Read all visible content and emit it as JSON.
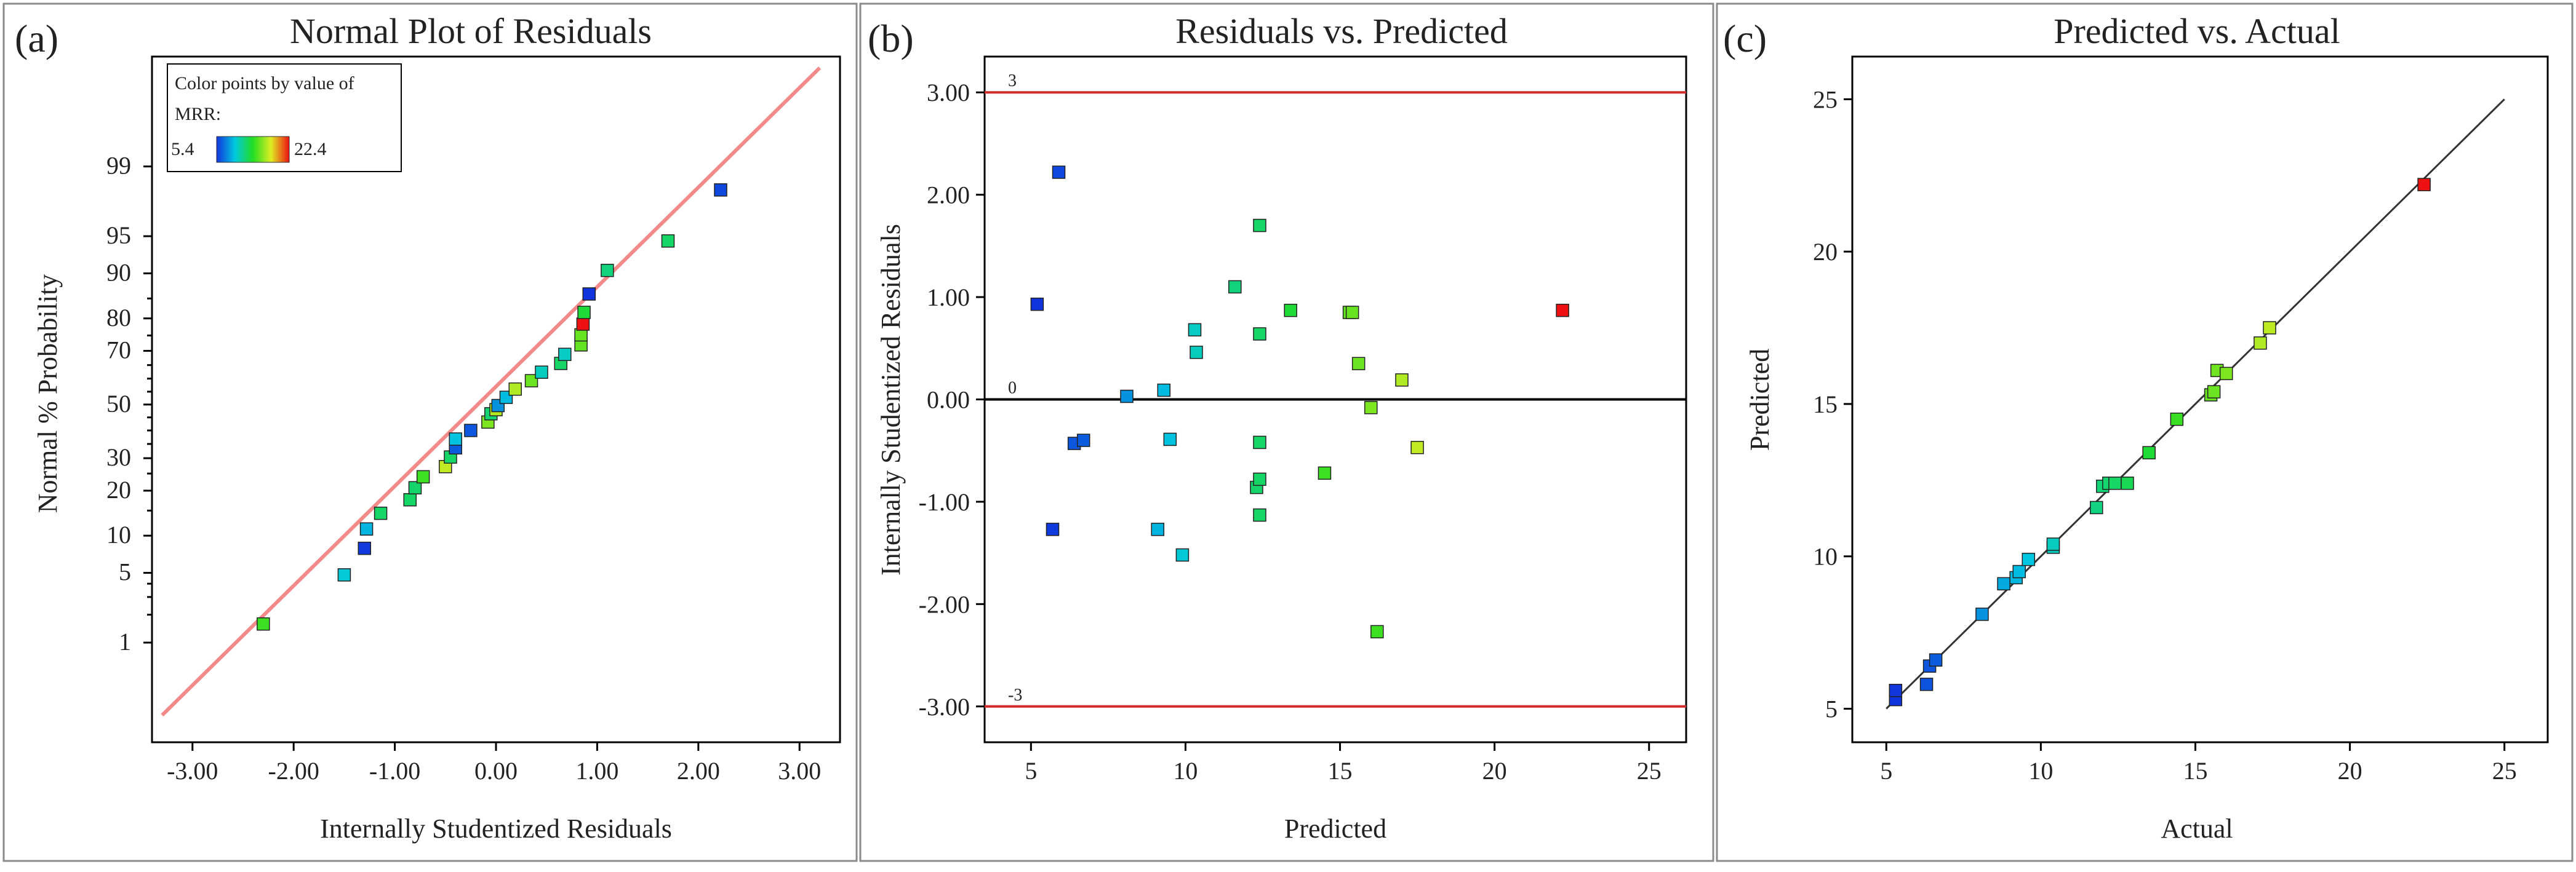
{
  "panels": [
    {
      "label": "(a)",
      "title": "Normal Plot of Residuals",
      "xlabel": "Internally Studentized Residuals",
      "ylabel": "Normal % Probability",
      "xticks": [
        "-3.00",
        "-2.00",
        "-1.00",
        "0.00",
        "1.00",
        "2.00",
        "3.00"
      ],
      "yticks": [
        "1",
        "5",
        "10",
        "20",
        "30",
        "50",
        "70",
        "80",
        "90",
        "95",
        "99"
      ]
    },
    {
      "label": "(b)",
      "title": "Residuals vs. Predicted",
      "xlabel": "Predicted",
      "ylabel": "Internally Studentized Residuals",
      "xticks": [
        "5",
        "10",
        "15",
        "20",
        "25"
      ],
      "yticks": [
        "-3.00",
        "-2.00",
        "-1.00",
        "0.00",
        "1.00",
        "2.00",
        "3.00"
      ],
      "ref_labels": [
        "3",
        "0",
        "-3"
      ]
    },
    {
      "label": "(c)",
      "title": "Predicted vs. Actual",
      "xlabel": "Actual",
      "ylabel": "Predicted",
      "xticks": [
        "5",
        "10",
        "15",
        "20",
        "25"
      ],
      "yticks": [
        "5",
        "10",
        "15",
        "20",
        "25"
      ]
    }
  ],
  "legend": {
    "title_line1": "Color points by value of",
    "title_line2": "MRR:",
    "min_label": "5.4",
    "max_label": "22.4"
  },
  "colors": {
    "fit_line_a": "#f28a8a",
    "limit_line_b": "#d22b2b",
    "zero_line_b": "#000000",
    "fit_line_c": "#333333",
    "gradient": [
      "#1133dd",
      "#00c8e0",
      "#22dd22",
      "#ddee22",
      "#ee1111"
    ]
  },
  "chart_data": [
    {
      "type": "scatter",
      "title": "Normal Plot of Residuals",
      "xlabel": "Internally Studentized Residuals",
      "ylabel": "Normal % Probability",
      "xlim": [
        -3.4,
        3.4
      ],
      "probability_ticks": [
        1,
        5,
        10,
        20,
        30,
        50,
        70,
        80,
        90,
        95,
        99
      ],
      "fit_line": [
        [
          -3.3,
          0.12
        ],
        [
          3.2,
          99.95
        ]
      ],
      "points": [
        {
          "x": -2.3,
          "p": 1.6,
          "mrr": 14.5
        },
        {
          "x": -1.5,
          "p": 4.8,
          "mrr": 9.9
        },
        {
          "x": -1.3,
          "p": 8.0,
          "mrr": 5.6
        },
        {
          "x": -1.28,
          "p": 11.2,
          "mrr": 9.1
        },
        {
          "x": -1.14,
          "p": 14.4,
          "mrr": 12.4
        },
        {
          "x": -0.85,
          "p": 17.6,
          "mrr": 12.4
        },
        {
          "x": -0.8,
          "p": 20.8,
          "mrr": 12.3
        },
        {
          "x": -0.72,
          "p": 24.0,
          "mrr": 14.5
        },
        {
          "x": -0.5,
          "p": 27.2,
          "mrr": 17.5
        },
        {
          "x": -0.45,
          "p": 30.4,
          "mrr": 12.4
        },
        {
          "x": -0.4,
          "p": 33.6,
          "mrr": 6.6
        },
        {
          "x": -0.4,
          "p": 36.8,
          "mrr": 9.5
        },
        {
          "x": -0.25,
          "p": 40.0,
          "mrr": 6.4
        },
        {
          "x": -0.08,
          "p": 43.2,
          "mrr": 16.0
        },
        {
          "x": -0.05,
          "p": 46.4,
          "mrr": 12.1
        },
        {
          "x": 0.0,
          "p": 48.0,
          "mrr": 17.2
        },
        {
          "x": 0.02,
          "p": 49.6,
          "mrr": 8.1
        },
        {
          "x": 0.1,
          "p": 52.8,
          "mrr": 9.3
        },
        {
          "x": 0.19,
          "p": 56.0,
          "mrr": 17.1
        },
        {
          "x": 0.35,
          "p": 59.2,
          "mrr": 15.6
        },
        {
          "x": 0.45,
          "p": 62.4,
          "mrr": 10.4
        },
        {
          "x": 0.64,
          "p": 65.6,
          "mrr": 12.4
        },
        {
          "x": 0.68,
          "p": 68.8,
          "mrr": 10.3
        },
        {
          "x": 0.84,
          "p": 72.0,
          "mrr": 15.4
        },
        {
          "x": 0.84,
          "p": 75.2,
          "mrr": 15.5
        },
        {
          "x": 0.86,
          "p": 78.4,
          "mrr": 22.4
        },
        {
          "x": 0.87,
          "p": 81.6,
          "mrr": 13.4
        },
        {
          "x": 0.92,
          "p": 86.0,
          "mrr": 5.4
        },
        {
          "x": 1.1,
          "p": 90.5,
          "mrr": 11.9
        },
        {
          "x": 1.7,
          "p": 94.5,
          "mrr": 12.4
        },
        {
          "x": 2.22,
          "p": 98.2,
          "mrr": 6.0
        }
      ]
    },
    {
      "type": "scatter",
      "title": "Residuals vs. Predicted",
      "xlabel": "Predicted",
      "ylabel": "Internally Studentized Residuals",
      "xlim": [
        3.5,
        26.2
      ],
      "ylim": [
        -3.35,
        3.35
      ],
      "reference_lines": [
        3,
        0,
        -3
      ],
      "points": [
        {
          "x": 5.2,
          "y": 0.93,
          "mrr": 5.4
        },
        {
          "x": 5.7,
          "y": -1.27,
          "mrr": 5.6
        },
        {
          "x": 5.9,
          "y": 2.22,
          "mrr": 6.0
        },
        {
          "x": 6.4,
          "y": -0.43,
          "mrr": 6.4
        },
        {
          "x": 6.7,
          "y": -0.4,
          "mrr": 6.6
        },
        {
          "x": 8.1,
          "y": 0.03,
          "mrr": 8.1
        },
        {
          "x": 9.1,
          "y": -1.27,
          "mrr": 9.1
        },
        {
          "x": 9.3,
          "y": 0.09,
          "mrr": 9.3
        },
        {
          "x": 9.5,
          "y": -0.39,
          "mrr": 9.5
        },
        {
          "x": 9.9,
          "y": -1.52,
          "mrr": 9.9
        },
        {
          "x": 10.3,
          "y": 0.68,
          "mrr": 10.3
        },
        {
          "x": 10.35,
          "y": 0.46,
          "mrr": 10.4
        },
        {
          "x": 11.6,
          "y": 1.1,
          "mrr": 11.9
        },
        {
          "x": 12.3,
          "y": -0.86,
          "mrr": 12.3
        },
        {
          "x": 12.4,
          "y": 1.7,
          "mrr": 12.4
        },
        {
          "x": 12.4,
          "y": 0.64,
          "mrr": 12.4
        },
        {
          "x": 12.4,
          "y": -0.42,
          "mrr": 12.4
        },
        {
          "x": 12.4,
          "y": -0.78,
          "mrr": 12.4
        },
        {
          "x": 12.4,
          "y": -1.13,
          "mrr": 12.4
        },
        {
          "x": 13.4,
          "y": 0.87,
          "mrr": 13.4
        },
        {
          "x": 14.5,
          "y": -0.72,
          "mrr": 14.5
        },
        {
          "x": 15.3,
          "y": 0.85,
          "mrr": 15.4
        },
        {
          "x": 15.4,
          "y": 0.85,
          "mrr": 15.5
        },
        {
          "x": 15.6,
          "y": 0.35,
          "mrr": 15.6
        },
        {
          "x": 16.0,
          "y": -0.08,
          "mrr": 16.0
        },
        {
          "x": 16.2,
          "y": -2.27,
          "mrr": 14.5
        },
        {
          "x": 17.0,
          "y": 0.19,
          "mrr": 17.1
        },
        {
          "x": 17.5,
          "y": -0.47,
          "mrr": 17.5
        },
        {
          "x": 22.2,
          "y": 0.87,
          "mrr": 22.4
        }
      ]
    },
    {
      "type": "scatter",
      "title": "Predicted vs. Actual",
      "xlabel": "Actual",
      "ylabel": "Predicted",
      "xlim": [
        3.9,
        26.4
      ],
      "ylim": [
        3.9,
        26.4
      ],
      "fit_line": [
        [
          5.0,
          5.0
        ],
        [
          25.0,
          25.0
        ]
      ],
      "points": [
        {
          "x": 5.3,
          "y": 5.3,
          "mrr": 5.4
        },
        {
          "x": 5.3,
          "y": 5.6,
          "mrr": 5.5
        },
        {
          "x": 6.3,
          "y": 5.8,
          "mrr": 6.3
        },
        {
          "x": 6.4,
          "y": 6.4,
          "mrr": 6.4
        },
        {
          "x": 6.6,
          "y": 6.6,
          "mrr": 6.6
        },
        {
          "x": 8.1,
          "y": 8.1,
          "mrr": 8.1
        },
        {
          "x": 8.8,
          "y": 9.1,
          "mrr": 8.8
        },
        {
          "x": 9.2,
          "y": 9.3,
          "mrr": 9.2
        },
        {
          "x": 9.3,
          "y": 9.5,
          "mrr": 9.3
        },
        {
          "x": 9.6,
          "y": 9.9,
          "mrr": 9.6
        },
        {
          "x": 10.4,
          "y": 10.3,
          "mrr": 10.4
        },
        {
          "x": 10.4,
          "y": 10.4,
          "mrr": 10.4
        },
        {
          "x": 11.8,
          "y": 11.6,
          "mrr": 11.8
        },
        {
          "x": 12.0,
          "y": 12.3,
          "mrr": 12.0
        },
        {
          "x": 12.2,
          "y": 12.4,
          "mrr": 12.2
        },
        {
          "x": 12.4,
          "y": 12.4,
          "mrr": 12.4
        },
        {
          "x": 12.8,
          "y": 12.4,
          "mrr": 12.8
        },
        {
          "x": 13.5,
          "y": 13.4,
          "mrr": 13.5
        },
        {
          "x": 14.4,
          "y": 14.5,
          "mrr": 14.4
        },
        {
          "x": 15.5,
          "y": 15.3,
          "mrr": 15.5
        },
        {
          "x": 15.6,
          "y": 15.4,
          "mrr": 15.6
        },
        {
          "x": 15.7,
          "y": 16.1,
          "mrr": 15.7
        },
        {
          "x": 16.0,
          "y": 16.0,
          "mrr": 16.0
        },
        {
          "x": 17.1,
          "y": 17.0,
          "mrr": 17.1
        },
        {
          "x": 17.4,
          "y": 17.5,
          "mrr": 17.4
        },
        {
          "x": 22.4,
          "y": 22.2,
          "mrr": 22.4
        }
      ]
    }
  ]
}
